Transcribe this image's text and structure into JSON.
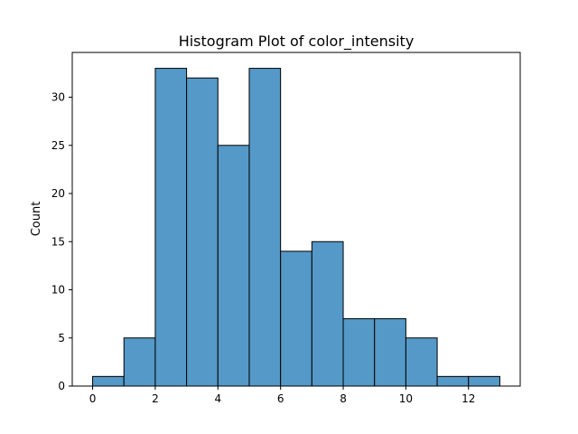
{
  "chart_data": {
    "type": "bar",
    "title": "Histogram Plot of color_intensity",
    "xlabel": "",
    "ylabel": "Count",
    "bins": [
      {
        "x0": 0.0,
        "x1": 1.0,
        "count": 1
      },
      {
        "x0": 1.0,
        "x1": 2.0,
        "count": 5
      },
      {
        "x0": 2.0,
        "x1": 3.0,
        "count": 33
      },
      {
        "x0": 3.0,
        "x1": 4.0,
        "count": 32
      },
      {
        "x0": 4.0,
        "x1": 5.0,
        "count": 25
      },
      {
        "x0": 5.0,
        "x1": 6.0,
        "count": 33
      },
      {
        "x0": 6.0,
        "x1": 7.0,
        "count": 14
      },
      {
        "x0": 7.0,
        "x1": 8.0,
        "count": 15
      },
      {
        "x0": 8.0,
        "x1": 9.0,
        "count": 7
      },
      {
        "x0": 9.0,
        "x1": 10.0,
        "count": 7
      },
      {
        "x0": 10.0,
        "x1": 11.0,
        "count": 5
      },
      {
        "x0": 11.0,
        "x1": 12.0,
        "count": 1
      },
      {
        "x0": 12.0,
        "x1": 13.0,
        "count": 1
      }
    ],
    "xlim": [
      -0.65,
      13.65
    ],
    "ylim": [
      0,
      34.65
    ],
    "xticks": [
      0,
      2,
      4,
      6,
      8,
      10,
      12
    ],
    "yticks": [
      0,
      5,
      10,
      15,
      20,
      25,
      30
    ],
    "grid": false,
    "bar_color": "#5499c7",
    "edge_color": "#000000"
  }
}
